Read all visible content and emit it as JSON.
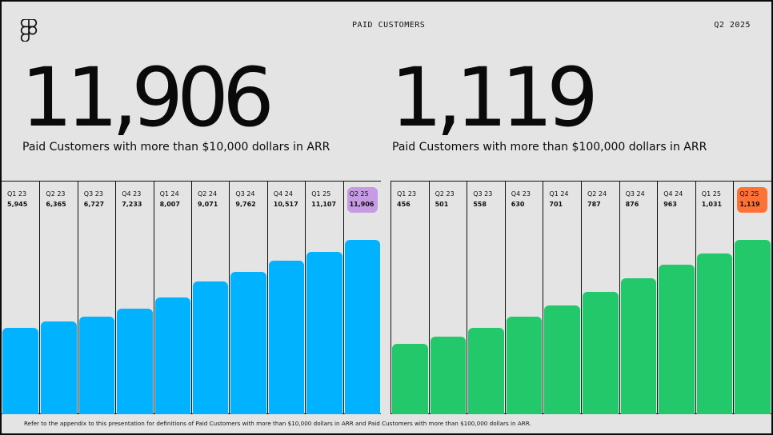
{
  "header": {
    "title": "PAID CUSTOMERS",
    "period": "Q2 2025"
  },
  "left": {
    "headline": "11,906",
    "subtitle": "Paid Customers with more than $10,000 dollars in ARR"
  },
  "right": {
    "headline": "1,119",
    "subtitle": "Paid Customers with more than $100,000 dollars in ARR"
  },
  "footnote": "Refer to the  appendix to this presentation for definitions of Paid Customers with more than $10,000 dollars in ARR and Paid Customers with more than $100,000 dollars in ARR.",
  "colors": {
    "blue": "#00b2ff",
    "green": "#22c86a",
    "highlight_left": "#c79be3",
    "highlight_right": "#ff7236"
  },
  "chart_data": [
    {
      "type": "bar",
      "categories": [
        "Q1 23",
        "Q2 23",
        "Q3 23",
        "Q4 23",
        "Q1 24",
        "Q2 24",
        "Q3 24",
        "Q4 24",
        "Q1 25",
        "Q2 25"
      ],
      "values": [
        5945,
        6365,
        6727,
        7233,
        8007,
        9071,
        9762,
        10517,
        11107,
        11906
      ],
      "labels": [
        "5,945",
        "6,365",
        "6,727",
        "7,233",
        "8,007",
        "9,071",
        "9,762",
        "10,517",
        "11,107",
        "11,906"
      ],
      "title": "Paid Customers with more than $10,000 dollars in ARR",
      "color": "#00b2ff",
      "highlight_index": 9
    },
    {
      "type": "bar",
      "categories": [
        "Q1 23",
        "Q2 23",
        "Q3 23",
        "Q4 23",
        "Q1 24",
        "Q2 24",
        "Q3 24",
        "Q4 24",
        "Q1 25",
        "Q2 25"
      ],
      "values": [
        456,
        501,
        558,
        630,
        701,
        787,
        876,
        963,
        1031,
        1119
      ],
      "labels": [
        "456",
        "501",
        "558",
        "630",
        "701",
        "787",
        "876",
        "963",
        "1,031",
        "1,119"
      ],
      "title": "Paid Customers with more than $100,000 dollars in ARR",
      "color": "#22c86a",
      "highlight_index": 9
    }
  ]
}
